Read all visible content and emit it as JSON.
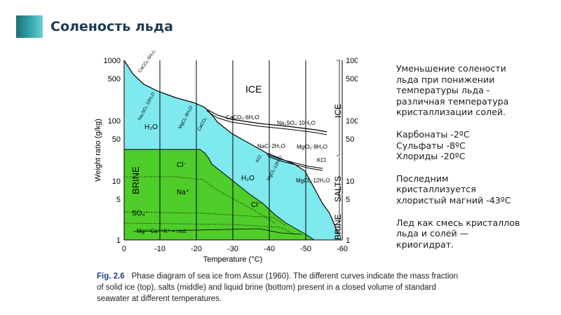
{
  "slide": {
    "title": "Соленость льда"
  },
  "sidebar": {
    "paragraphs": [
      [
        "Уменьшение солености",
        "льда при понижении",
        "температуры льда -",
        "различная температура",
        "кристаллизации солей."
      ],
      [
        "Карбонаты -2ºC",
        "Сульфаты -8ºC",
        "Хлориды -20ºC"
      ],
      [
        "Последним",
        "кристаллизуется",
        "хлористый магний -43ºC"
      ],
      [
        "Лед как смесь кристаллов",
        "льда и солей —",
        "криогидрат."
      ]
    ]
  },
  "figure": {
    "ylabel": "Weight ratio (g/kg)",
    "xlabel": "Temperature (°C)",
    "x_ticks": [
      "0",
      "-10",
      "-20",
      "-30",
      "-40",
      "-50",
      "-60"
    ],
    "y_ticks": [
      "1000",
      "500",
      "100",
      "50",
      "10",
      "5",
      "1"
    ],
    "region_labels": {
      "ice": "ICE",
      "brine": "BRINE",
      "h2o_upper": "H₂O",
      "h2o_lower": "H₂O",
      "cl_upper": "Cl⁻",
      "na": "Na⁺",
      "cl_lower": "Cl⁻",
      "so4": "SO₄⁻",
      "mix": "Mg⁺⁺Ca⁺⁺K⁺ + rest"
    },
    "side_labels": {
      "ice": "ICE",
      "salts": "SALTS",
      "brine": "BRINE"
    },
    "curve_labels": {
      "caco3": "CaCO₃·6H₂O",
      "na2so4": "Na₂SO₄·10H₂O",
      "nacl": "NaCl·2H₂O",
      "mgcl2_8": "MgCl₂·8H₂O",
      "kcl": "KCl",
      "mgcl2_12": "MgCl₂·12H₂O",
      "rot_top": "CaCO₃·6H₂O",
      "rot_mid1": "Na₂SO₄·10H₂O",
      "rot_mid2": "MgCl₂·8H₂O",
      "rot_mid3": "CaCO₃",
      "rot_kcl": "KCl",
      "rot_mg12": "MgCl₂·12H₂O"
    },
    "colors": {
      "ice_region": "#ffffff",
      "salt_region": "#7fe9f0",
      "brine_region": "#4fcd2a"
    }
  },
  "caption": {
    "label": "Fig. 2.6",
    "text": "Phase diagram of sea ice from Assur (1960). The different curves indicate the mass fraction of solid ice (top), salts (middle) and liquid brine (bottom) present in a closed volume of standard seawater at different temperatures."
  }
}
